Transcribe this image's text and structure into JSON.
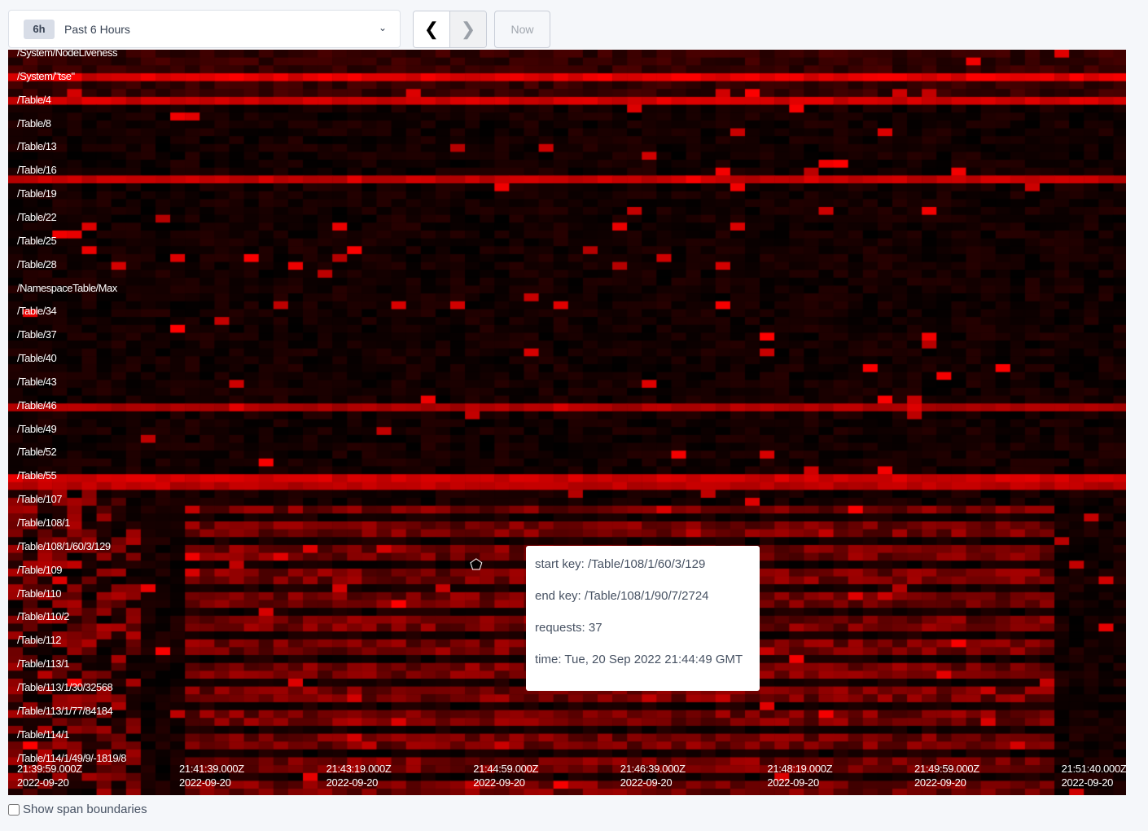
{
  "time_range": {
    "badge": "6h",
    "label": "Past 6 Hours",
    "options_icon": "chevron-down-icon"
  },
  "nav": {
    "prev_icon": "chevron-left-icon",
    "next_icon": "chevron-right-icon",
    "now_label": "Now"
  },
  "keys": [
    "/System/NodeLiveness",
    "/System/\"tse\"",
    "/Table/4",
    "/Table/8",
    "/Table/13",
    "/Table/16",
    "/Table/19",
    "/Table/22",
    "/Table/25",
    "/Table/28",
    "/NamespaceTable/Max",
    "/Table/34",
    "/Table/37",
    "/Table/40",
    "/Table/43",
    "/Table/46",
    "/Table/49",
    "/Table/52",
    "/Table/55",
    "/Table/107",
    "/Table/108/1",
    "/Table/108/1/60/3/129",
    "/Table/109",
    "/Table/110",
    "/Table/110/2",
    "/Table/112",
    "/Table/113/1",
    "/Table/113/1/30/32568",
    "/Table/113/1/77/84184",
    "/Table/114/1",
    "/Table/114/1/49/9/-1819/8"
  ],
  "time_ticks": [
    {
      "time": "21:39:59.000Z",
      "date": "2022-09-20"
    },
    {
      "time": "21:41:39.000Z",
      "date": "2022-09-20"
    },
    {
      "time": "21:43:19.000Z",
      "date": "2022-09-20"
    },
    {
      "time": "21:44:59.000Z",
      "date": "2022-09-20"
    },
    {
      "time": "21:46:39.000Z",
      "date": "2022-09-20"
    },
    {
      "time": "21:48:19.000Z",
      "date": "2022-09-20"
    },
    {
      "time": "21:49:59.000Z",
      "date": "2022-09-20"
    },
    {
      "time": "21:51:40.000Z",
      "date": "2022-09-20"
    }
  ],
  "tooltip": {
    "start_key": "start key: /Table/108/1/60/3/129",
    "end_key": "end key: /Table/108/1/90/7/2724",
    "requests": "requests: 37",
    "time": "time: Tue, 20 Sep 2022 21:44:49 GMT"
  },
  "show_span_boundaries": {
    "label": "Show span boundaries",
    "checked": false
  },
  "colors": {
    "heat": "#ff0000",
    "background": "#000000"
  }
}
